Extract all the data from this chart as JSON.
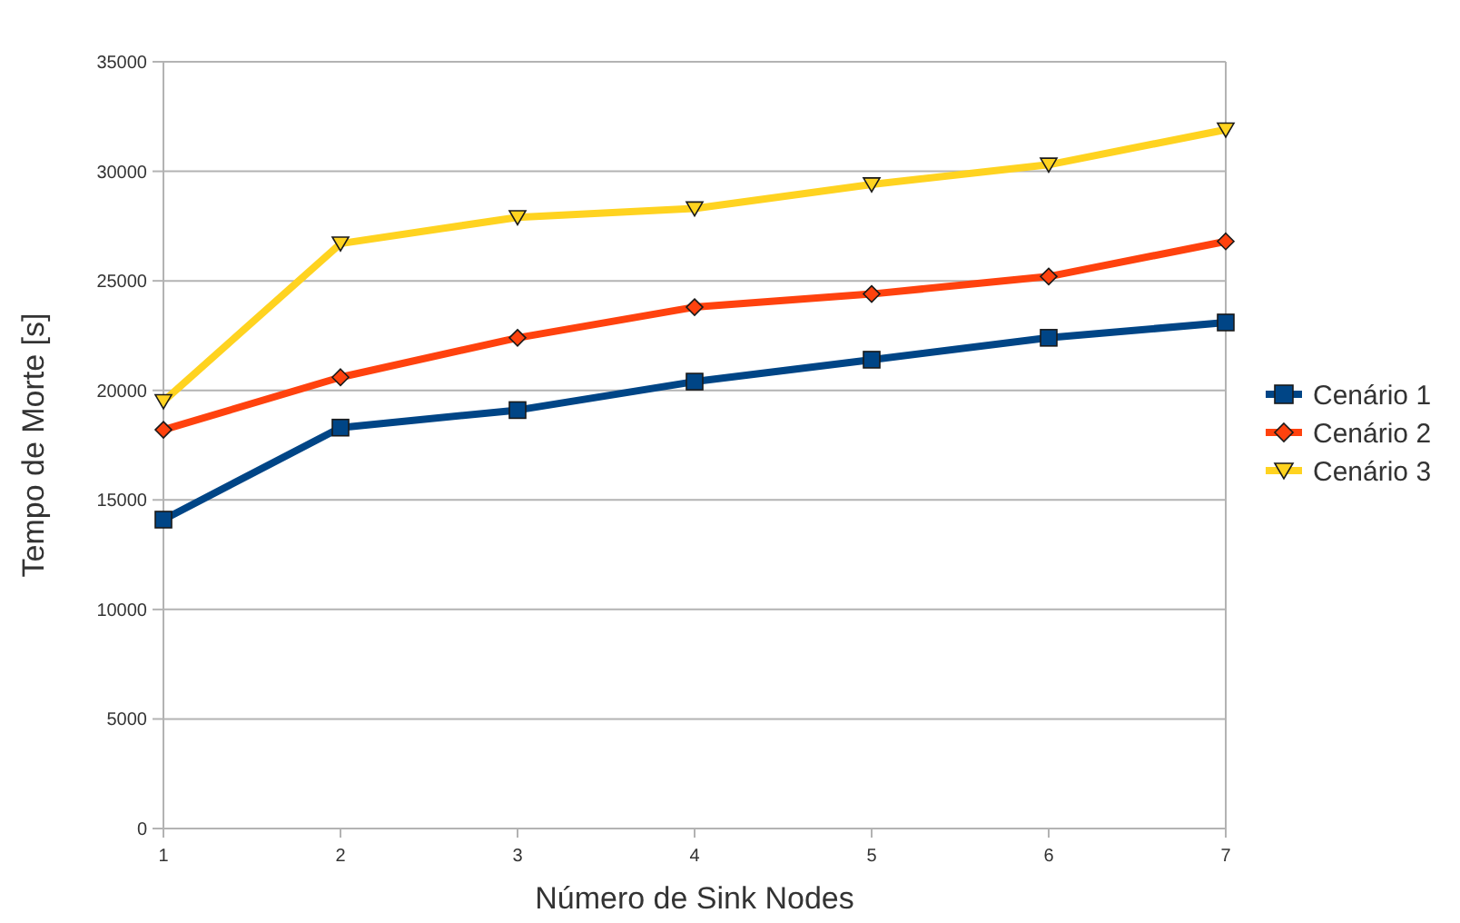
{
  "chart_data": {
    "type": "line",
    "xlabel": "Número de Sink Nodes",
    "ylabel": "Tempo de Morte [s]",
    "x": [
      1,
      2,
      3,
      4,
      5,
      6,
      7
    ],
    "xlim": [
      1,
      7
    ],
    "xticks": [
      1,
      2,
      3,
      4,
      5,
      6,
      7
    ],
    "ylim": [
      0,
      35000
    ],
    "yticks": [
      0,
      5000,
      10000,
      15000,
      20000,
      25000,
      30000,
      35000
    ],
    "grid": "y",
    "legend": "right",
    "series": [
      {
        "name": "Cenário 1",
        "color": "#004586",
        "marker": "square",
        "values": [
          14100,
          18300,
          19100,
          20400,
          21400,
          22400,
          23100
        ]
      },
      {
        "name": "Cenário 2",
        "color": "#ff420e",
        "marker": "diamond",
        "values": [
          18200,
          20600,
          22400,
          23800,
          24400,
          25200,
          26800
        ]
      },
      {
        "name": "Cenário 3",
        "color": "#ffd320",
        "marker": "triangle",
        "values": [
          19500,
          26700,
          27900,
          28300,
          29400,
          30300,
          31900
        ]
      }
    ]
  }
}
